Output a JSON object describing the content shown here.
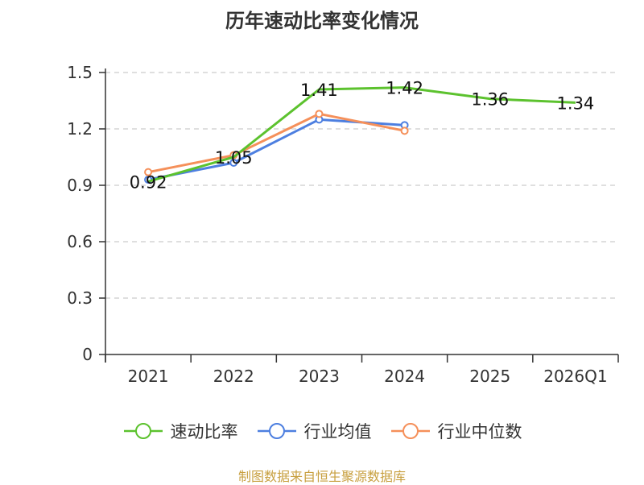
{
  "title": "历年速动比率变化情况",
  "source": "制图数据来自恒生聚源数据库",
  "legend": [
    {
      "name": "速动比率",
      "color": "#5cc22e"
    },
    {
      "name": "行业均值",
      "color": "#4d7fe0"
    },
    {
      "name": "行业中位数",
      "color": "#f5905a"
    }
  ],
  "chart_data": {
    "type": "line",
    "title": "历年速动比率变化情况",
    "categories": [
      "2021",
      "2022",
      "2023",
      "2024",
      "2025",
      "2026Q1"
    ],
    "ylim": [
      0,
      1.5
    ],
    "yticks": [
      0,
      0.3,
      0.6,
      0.9,
      1.2,
      1.5
    ],
    "ytick_labels": [
      "0",
      "0.3",
      "0.6",
      "0.9",
      "1.2",
      "1.5"
    ],
    "grid": true,
    "legend_position": "bottom",
    "series": [
      {
        "name": "速动比率",
        "color": "#5cc22e",
        "values": [
          0.92,
          1.05,
          1.41,
          1.42,
          1.36,
          1.34
        ],
        "labels": [
          "0.92",
          "1.05",
          "1.41",
          "1.42",
          "1.36",
          "1.34"
        ],
        "markers": false
      },
      {
        "name": "行业均值",
        "color": "#4d7fe0",
        "values": [
          0.93,
          1.02,
          1.25,
          1.22,
          null,
          null
        ],
        "markers": true
      },
      {
        "name": "行业中位数",
        "color": "#f5905a",
        "values": [
          0.97,
          1.06,
          1.28,
          1.19,
          null,
          null
        ],
        "markers": true
      }
    ]
  }
}
